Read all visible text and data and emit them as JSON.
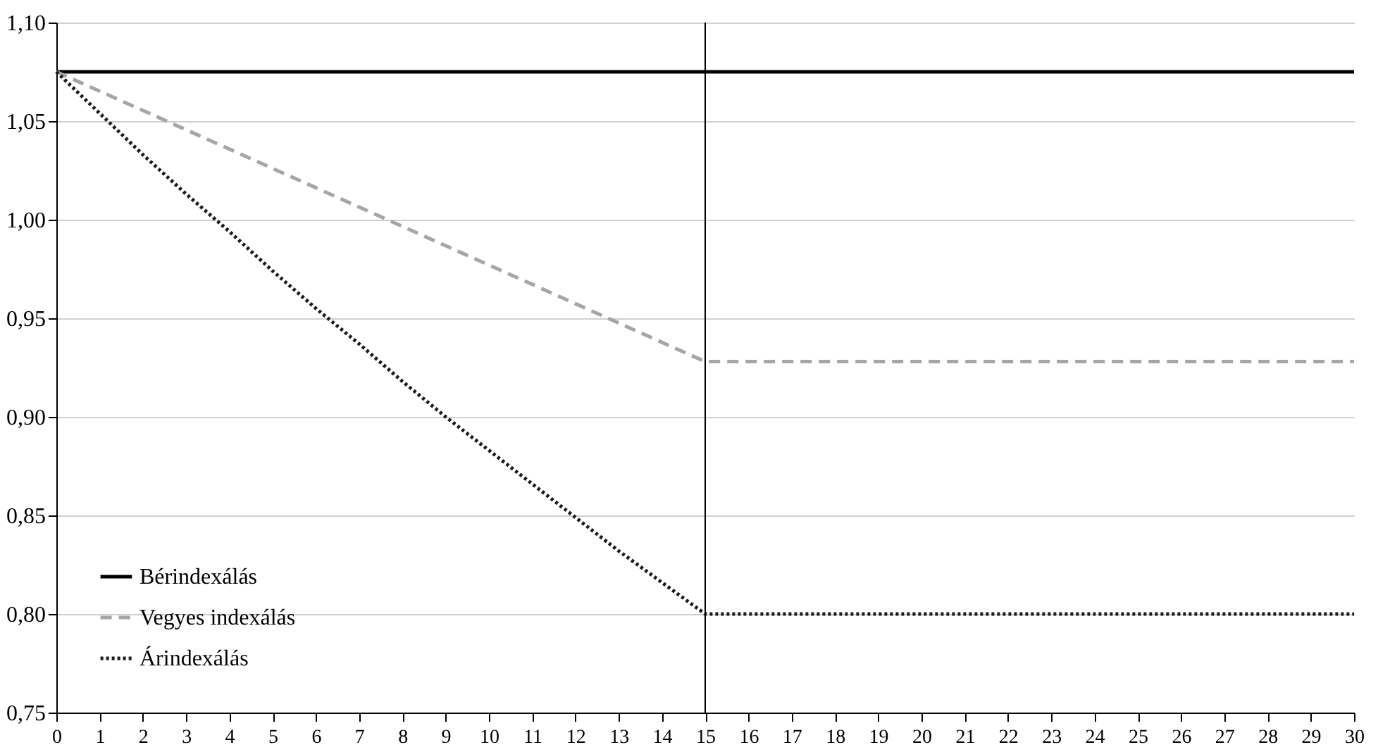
{
  "chart_data": {
    "type": "line",
    "xlim": [
      0,
      30
    ],
    "xticks": [
      0,
      1,
      2,
      3,
      4,
      5,
      6,
      7,
      8,
      9,
      10,
      11,
      12,
      13,
      14,
      15,
      16,
      17,
      18,
      19,
      20,
      21,
      22,
      23,
      24,
      25,
      26,
      27,
      28,
      29,
      30
    ],
    "ylim": [
      0.75,
      1.1
    ],
    "yticks": [
      {
        "value": 0.75,
        "label": "0,75"
      },
      {
        "value": 0.8,
        "label": "0,80"
      },
      {
        "value": 0.85,
        "label": "0,85"
      },
      {
        "value": 0.9,
        "label": "0,90"
      },
      {
        "value": 0.95,
        "label": "0,95"
      },
      {
        "value": 1.0,
        "label": "1,00"
      },
      {
        "value": 1.05,
        "label": "1,05"
      },
      {
        "value": 1.1,
        "label": "1,10"
      }
    ],
    "grid": "y",
    "legend": "bottom left",
    "marker": "none",
    "ref_lines": [
      {
        "axis": "x",
        "value": 15,
        "color": "#000000",
        "line_style": "solid"
      }
    ],
    "series": [
      {
        "name": "Bérindexálás",
        "color": "#000000",
        "line_style": "solid",
        "x": [
          0,
          30
        ],
        "values": [
          1.075,
          1.075
        ]
      },
      {
        "name": "Vegyes indexálás",
        "color": "#a6a6a6",
        "line_style": "dashed",
        "x": [
          0,
          15,
          30
        ],
        "values": [
          1.075,
          0.928,
          0.928
        ]
      },
      {
        "name": "Árindexálás",
        "color": "#1a1a1a",
        "line_style": "dotted",
        "x": [
          0,
          1,
          2,
          3,
          4,
          5,
          6,
          7,
          8,
          9,
          10,
          11,
          12,
          13,
          14,
          15,
          30
        ],
        "values": [
          1.075,
          1.054,
          1.033,
          1.013,
          0.994,
          0.974,
          0.955,
          0.937,
          0.918,
          0.9,
          0.883,
          0.866,
          0.849,
          0.832,
          0.816,
          0.8,
          0.8
        ]
      }
    ]
  }
}
